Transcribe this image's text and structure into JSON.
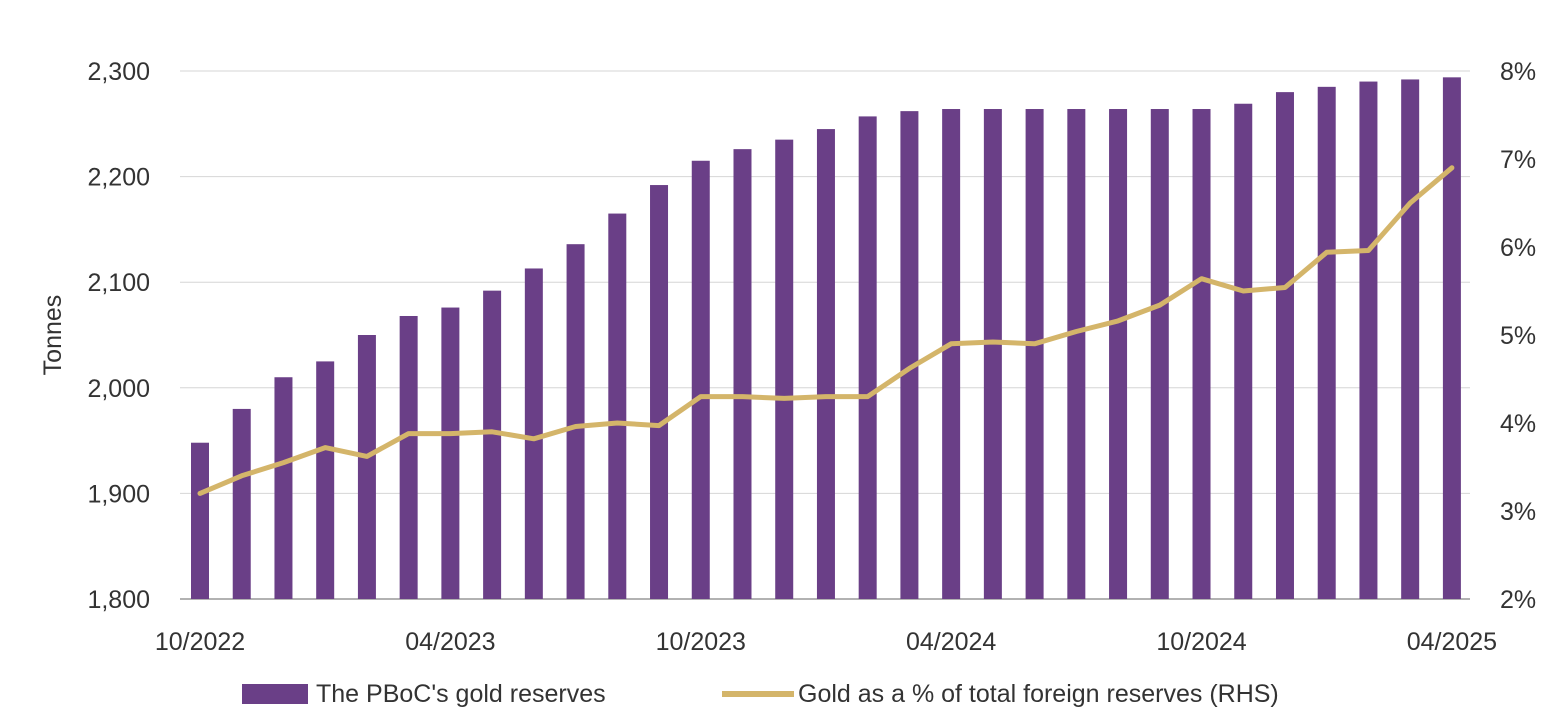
{
  "colors": {
    "bars": "#6a3f87",
    "line": "#d4b56a",
    "grid": "#d6d6d6",
    "axis": "#999999",
    "text": "#333333"
  },
  "chart_data": {
    "type": "bar",
    "title": "",
    "xlabel": "",
    "ylabel": "Tonnes",
    "ylabel_right": "",
    "ylim": [
      1800,
      2300
    ],
    "ylim_right": [
      2,
      8
    ],
    "y_ticks": [
      "1,800",
      "1,900",
      "2,000",
      "2,100",
      "2,200",
      "2,300"
    ],
    "y_right_ticks": [
      "2%",
      "3%",
      "4%",
      "5%",
      "6%",
      "7%",
      "8%"
    ],
    "x_tick_labels": [
      "10/2022",
      "04/2023",
      "10/2023",
      "04/2024",
      "10/2024",
      "04/2025"
    ],
    "x_tick_indices": [
      0,
      6,
      12,
      18,
      24,
      30
    ],
    "categories": [
      "10/2022",
      "11/2022",
      "12/2022",
      "01/2023",
      "02/2023",
      "03/2023",
      "04/2023",
      "05/2023",
      "06/2023",
      "07/2023",
      "08/2023",
      "09/2023",
      "10/2023",
      "11/2023",
      "12/2023",
      "01/2024",
      "02/2024",
      "03/2024",
      "04/2024",
      "05/2024",
      "06/2024",
      "07/2024",
      "08/2024",
      "09/2024",
      "10/2024",
      "11/2024",
      "12/2024",
      "01/2025",
      "02/2025",
      "03/2025",
      "04/2025"
    ],
    "grid": true,
    "legend_position": "bottom",
    "series": [
      {
        "name": "The PBoC's gold reserves",
        "type": "bar",
        "axis": "left",
        "values": [
          1948,
          1980,
          2010,
          2025,
          2050,
          2068,
          2076,
          2092,
          2113,
          2136,
          2165,
          2192,
          2215,
          2226,
          2235,
          2245,
          2257,
          2262,
          2264,
          2264,
          2264,
          2264,
          2264,
          2264,
          2264,
          2269,
          2280,
          2285,
          2290,
          2292,
          2294
        ]
      },
      {
        "name": "Gold as a % of total foreign reserves (RHS)",
        "type": "line",
        "axis": "right",
        "values": [
          3.2,
          3.4,
          3.55,
          3.72,
          3.62,
          3.88,
          3.88,
          3.9,
          3.82,
          3.96,
          4.0,
          3.97,
          4.3,
          4.3,
          4.28,
          4.3,
          4.3,
          4.62,
          4.9,
          4.92,
          4.9,
          5.04,
          5.16,
          5.34,
          5.64,
          5.5,
          5.54,
          5.94,
          5.96,
          6.5,
          6.9
        ]
      }
    ]
  }
}
